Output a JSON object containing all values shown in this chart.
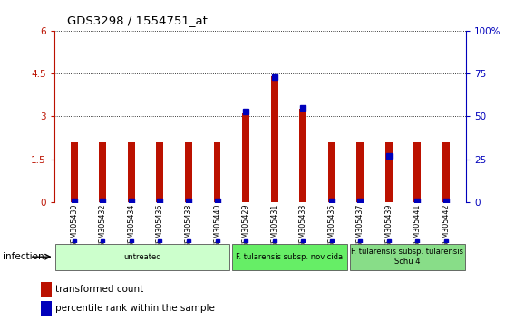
{
  "title": "GDS3298 / 1554751_at",
  "samples": [
    "GSM305430",
    "GSM305432",
    "GSM305434",
    "GSM305436",
    "GSM305438",
    "GSM305440",
    "GSM305429",
    "GSM305431",
    "GSM305433",
    "GSM305435",
    "GSM305437",
    "GSM305439",
    "GSM305441",
    "GSM305442"
  ],
  "red_values": [
    2.1,
    2.1,
    2.1,
    2.1,
    2.1,
    2.1,
    3.1,
    4.4,
    3.25,
    2.1,
    2.1,
    2.1,
    2.1,
    2.1
  ],
  "blue_pct": [
    0.5,
    0.5,
    0.5,
    0.5,
    0.5,
    0.5,
    53.0,
    73.0,
    55.0,
    0.5,
    0.5,
    27.0,
    0.5,
    0.5
  ],
  "ylim_left": [
    0,
    6
  ],
  "ylim_right": [
    0,
    100
  ],
  "yticks_left": [
    0,
    1.5,
    3.0,
    4.5,
    6.0
  ],
  "yticks_right": [
    0,
    25,
    50,
    75,
    100
  ],
  "groups": [
    {
      "label": "untreated",
      "start": 0,
      "end": 6,
      "color": "#ccffcc"
    },
    {
      "label": "F. tularensis subsp. novicida",
      "start": 6,
      "end": 10,
      "color": "#66ee66"
    },
    {
      "label": "F. tularensis subsp. tularensis\nSchu 4",
      "start": 10,
      "end": 14,
      "color": "#88dd88"
    }
  ],
  "infection_label": "infection",
  "red_color": "#bb1100",
  "blue_color": "#0000bb",
  "tick_area_color": "#d0d0d0",
  "plot_bg": "#ffffff"
}
